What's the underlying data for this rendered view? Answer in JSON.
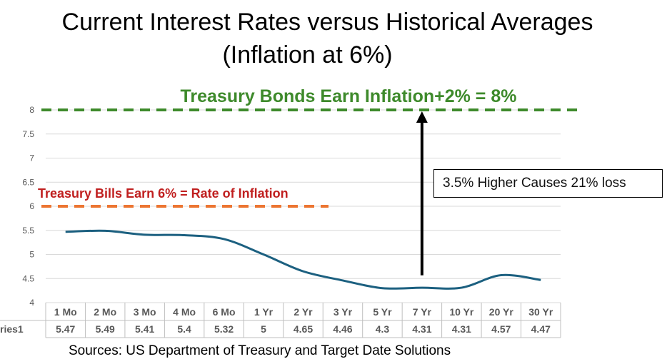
{
  "title": "Current Interest Rates versus Historical Averages",
  "subtitle": "(Inflation at 6%)",
  "source": "Sources: US Department of Treasury and Target Date Solutions",
  "callout": "3.5% Higher Causes 21% loss",
  "annotations": {
    "bonds": {
      "text": "Treasury Bonds Earn Inflation+2% = 8%",
      "value": 8,
      "color": "#3e8a2b"
    },
    "bills": {
      "text": "Treasury Bills Earn 6% = Rate of Inflation",
      "value": 6,
      "color": "#c01f1f",
      "line_color": "#ec7531"
    }
  },
  "chart_data": {
    "type": "line",
    "categories": [
      "1 Mo",
      "2 Mo",
      "3 Mo",
      "4 Mo",
      "6 Mo",
      "1 Yr",
      "2 Yr",
      "3 Yr",
      "5 Yr",
      "7 Yr",
      "10 Yr",
      "20 Yr",
      "30 Yr"
    ],
    "series": [
      {
        "name": "ries1",
        "values": [
          5.47,
          5.49,
          5.41,
          5.4,
          5.32,
          5,
          4.65,
          4.46,
          4.3,
          4.31,
          4.31,
          4.57,
          4.47
        ],
        "color": "#1c6080"
      }
    ],
    "ylim": [
      4,
      8
    ],
    "yticks": [
      "4",
      "4.5",
      "5",
      "5.5",
      "6",
      "6.5",
      "7",
      "7.5",
      "8"
    ],
    "table_row": [
      "5.47",
      "5.49",
      "5.41",
      "5.4",
      "5.32",
      "5",
      "4.65",
      "4.46",
      "4.3",
      "4.31",
      "4.31",
      "4.57",
      "4.47"
    ],
    "gridlines": true,
    "legend": "none",
    "arrow": {
      "category": "7 Yr",
      "from": 4.3,
      "to": 8
    }
  }
}
